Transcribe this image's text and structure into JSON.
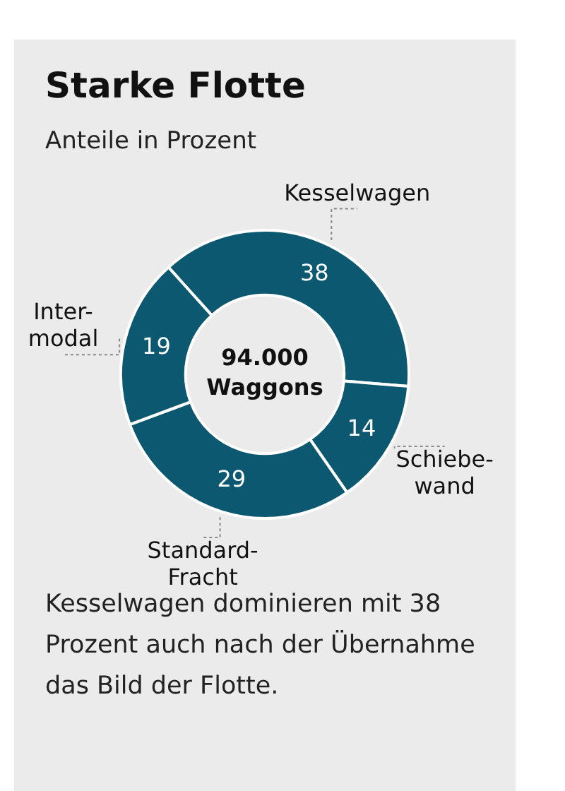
{
  "chart_data": {
    "type": "donut",
    "title": "Starke Flotte",
    "subtitle": "Anteile in Prozent",
    "categories": [
      "Kesselwagen",
      "Schiebe-\nwand",
      "Standard-\nFracht",
      "Inter-\nmodal"
    ],
    "values": [
      38,
      14,
      29,
      19
    ],
    "colors": [
      "#0b5870",
      "#0b5870",
      "#0b5870",
      "#0b5870"
    ],
    "data_labels": true,
    "legend": false,
    "annotations": [
      "94.000\nWaggons",
      "Kesselwagen dominieren mit 38 Prozent auch nach der Übernahme das Bild der Flotte."
    ]
  }
}
